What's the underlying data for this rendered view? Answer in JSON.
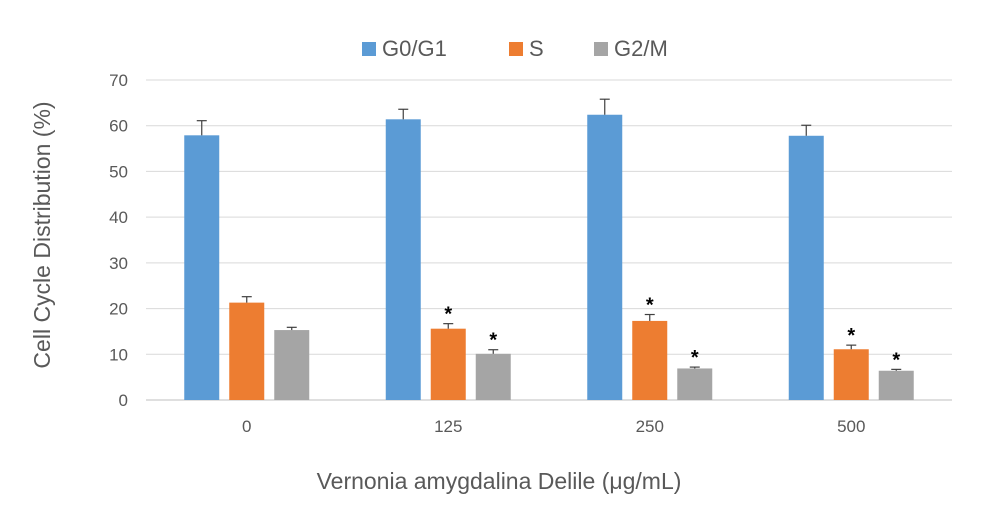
{
  "chart_data": {
    "type": "bar",
    "categories": [
      "0",
      "125",
      "250",
      "500"
    ],
    "series": [
      {
        "name": "G0/G1",
        "color": "#5B9BD5",
        "values": [
          57.9,
          61.4,
          62.4,
          57.8
        ],
        "errors": [
          3.2,
          2.2,
          3.4,
          2.3
        ],
        "significance": [
          "",
          "",
          "",
          ""
        ]
      },
      {
        "name": "S",
        "color": "#ED7D31",
        "values": [
          21.3,
          15.6,
          17.3,
          11.1
        ],
        "errors": [
          1.3,
          1.1,
          1.4,
          0.9
        ],
        "significance": [
          "",
          "*",
          "*",
          "*"
        ]
      },
      {
        "name": "G2/M",
        "color": "#A5A5A5",
        "values": [
          15.3,
          10.1,
          6.9,
          6.4
        ],
        "errors": [
          0.6,
          0.9,
          0.3,
          0.3
        ],
        "significance": [
          "",
          "*",
          "*",
          "*"
        ]
      }
    ],
    "ylim": [
      0,
      70
    ],
    "yticks": [
      0,
      10,
      20,
      30,
      40,
      50,
      60,
      70
    ],
    "ylabel": "Cell Cycle Distribution (%)",
    "xlabel": "Vernonia amygdalina Delile (μg/mL)",
    "title": "",
    "grid": true,
    "legend_position": "top-center"
  }
}
